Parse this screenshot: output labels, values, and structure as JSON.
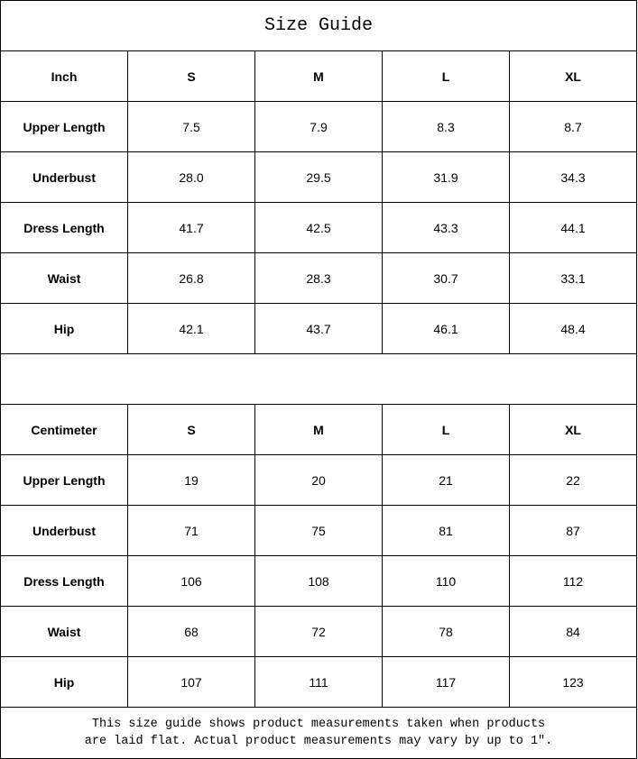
{
  "title": "Size Guide",
  "sizes": [
    "S",
    "M",
    "L",
    "XL"
  ],
  "tables": [
    {
      "unit": "Inch",
      "rows": [
        {
          "label": "Upper Length",
          "values": [
            "7.5",
            "7.9",
            "8.3",
            "8.7"
          ]
        },
        {
          "label": "Underbust",
          "values": [
            "28.0",
            "29.5",
            "31.9",
            "34.3"
          ]
        },
        {
          "label": "Dress Length",
          "values": [
            "41.7",
            "42.5",
            "43.3",
            "44.1"
          ]
        },
        {
          "label": "Waist",
          "values": [
            "26.8",
            "28.3",
            "30.7",
            "33.1"
          ]
        },
        {
          "label": "Hip",
          "values": [
            "42.1",
            "43.7",
            "46.1",
            "48.4"
          ]
        }
      ]
    },
    {
      "unit": "Centimeter",
      "rows": [
        {
          "label": "Upper Length",
          "values": [
            "19",
            "20",
            "21",
            "22"
          ]
        },
        {
          "label": "Underbust",
          "values": [
            "71",
            "75",
            "81",
            "87"
          ]
        },
        {
          "label": "Dress Length",
          "values": [
            "106",
            "108",
            "110",
            "112"
          ]
        },
        {
          "label": "Waist",
          "values": [
            "68",
            "72",
            "78",
            "84"
          ]
        },
        {
          "label": "Hip",
          "values": [
            "107",
            "111",
            "117",
            "123"
          ]
        }
      ]
    }
  ],
  "footer": {
    "line1": "This size guide shows product measurements taken when products",
    "line2": "are laid flat. Actual product measurements may vary by up to 1″."
  }
}
